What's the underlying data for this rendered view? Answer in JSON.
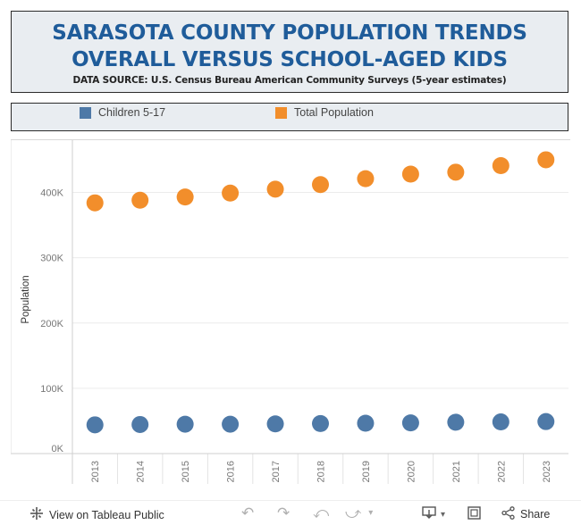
{
  "header": {
    "title_line1": "SARASOTA COUNTY POPULATION TRENDS",
    "title_line2": "OVERALL VERSUS SCHOOL-AGED KIDS",
    "source": "DATA SOURCE: U.S. Census Bureau American Community Surveys (5-year estimates)"
  },
  "legend": {
    "items": [
      {
        "label": "Children 5-17",
        "color": "#4e79a7"
      },
      {
        "label": "Total Population",
        "color": "#f28e2b"
      }
    ]
  },
  "chart_data": {
    "type": "scatter",
    "title": "SARASOTA COUNTY POPULATION TRENDS OVERALL VERSUS SCHOOL-AGED KIDS",
    "xlabel": "",
    "ylabel": "Population",
    "ylim": [
      0,
      480000
    ],
    "yticks": [
      0,
      100000,
      200000,
      300000,
      400000
    ],
    "ytick_labels": [
      "0K",
      "100K",
      "200K",
      "300K",
      "400K"
    ],
    "categories": [
      "2013",
      "2014",
      "2015",
      "2016",
      "2017",
      "2018",
      "2019",
      "2020",
      "2021",
      "2022",
      "2023"
    ],
    "series": [
      {
        "name": "Children 5-17",
        "color": "#4e79a7",
        "values": [
          44000,
          44500,
          45000,
          45000,
          45500,
          46000,
          46500,
          47000,
          48000,
          48500,
          49000
        ]
      },
      {
        "name": "Total Population",
        "color": "#f28e2b",
        "values": [
          384000,
          388000,
          393000,
          399000,
          405000,
          412000,
          421000,
          428000,
          431000,
          441000,
          450000
        ]
      }
    ],
    "grid": true,
    "legend_position": "top"
  },
  "footer": {
    "view_label": "View on Tableau Public",
    "share_label": "Share"
  },
  "icons": {
    "tableau": "tableau-logo-icon",
    "undo": "undo-icon",
    "redo": "redo-icon",
    "revert": "revert-icon",
    "forward": "forward-icon",
    "download": "download-icon",
    "fullscreen": "fullscreen-icon",
    "share": "share-icon"
  }
}
